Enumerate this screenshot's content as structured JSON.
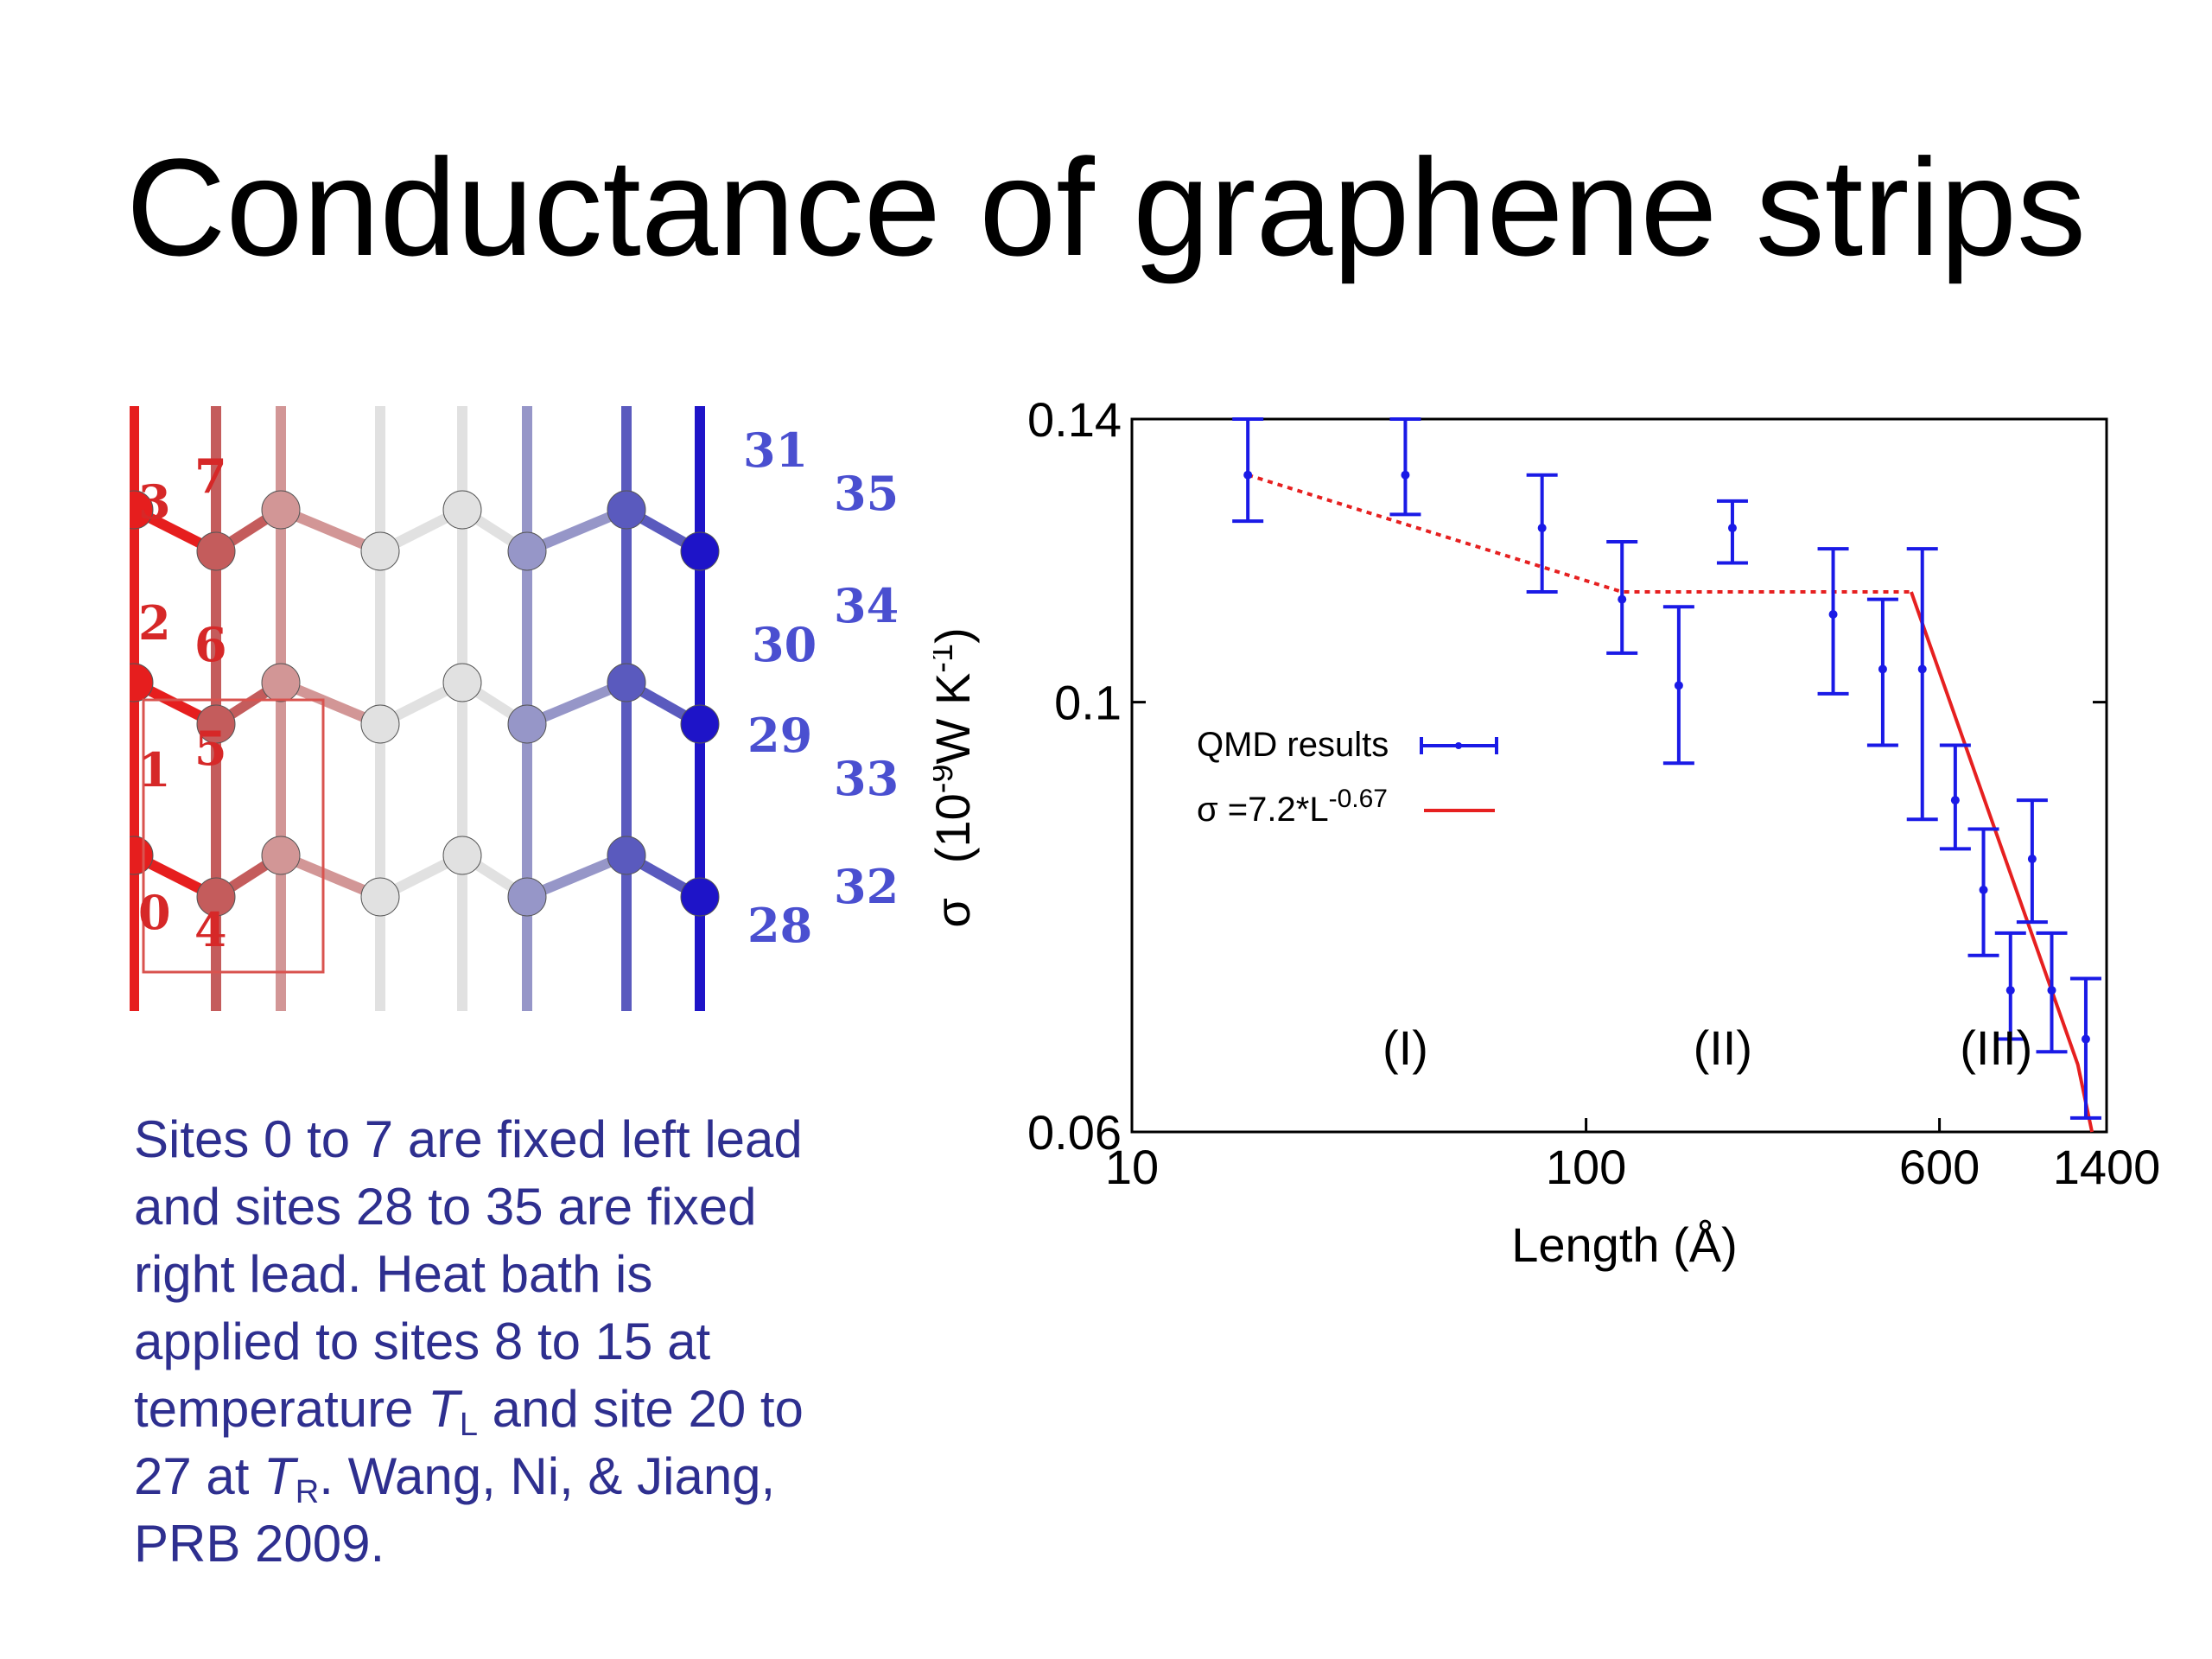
{
  "slide": {
    "title": "Conductance of graphene strips"
  },
  "description": {
    "line1": "Sites 0 to 7 are fixed left lead",
    "line2": "and sites 28 to 35 are fixed",
    "line3": "right lead.  Heat bath is",
    "line4": "applied to sites 8 to 15 at",
    "line5_a": "temperature ",
    "line5_T": "T",
    "line5_sub": "L",
    "line5_b": " and site 20 to",
    "line6_a": "27 at ",
    "line6_T": "T",
    "line6_sub": "R",
    "line6_b": ". Wang, Ni, & Jiang,",
    "line7": "PRB 2009."
  },
  "lattice": {
    "left_labels": [
      "3",
      "7",
      "2",
      "6",
      "1",
      "5",
      "0",
      "4"
    ],
    "right_labels": [
      "31",
      "35",
      "34",
      "30",
      "29",
      "33",
      "32",
      "28"
    ],
    "colors": {
      "left": "#d62828",
      "right": "#4a4fd0",
      "box": "#d9534f"
    }
  },
  "chart_data": {
    "type": "scatter",
    "x_scale": "log",
    "y_scale": "log",
    "xlim": [
      10,
      1400
    ],
    "ylim": [
      0.06,
      0.14
    ],
    "x_ticks": [
      "10",
      "100",
      "600",
      "1400"
    ],
    "y_ticks": [
      "0.06",
      "0.1",
      "0.14"
    ],
    "xlabel": "Length   (Å)",
    "ylabel_sym": "σ",
    "ylabel_units_open": "(10",
    "ylabel_units_exp": "-9",
    "ylabel_units_mid": "W K",
    "ylabel_units_exp2": "-1",
    "ylabel_units_close": ")",
    "grid": false,
    "legend_position": "center-left",
    "series": [
      {
        "name": "QMD results",
        "color": "#1a1ae6",
        "points": [
          {
            "x": 18,
            "y": 0.131,
            "lo": 0.124,
            "hi": 0.14
          },
          {
            "x": 40,
            "y": 0.131,
            "lo": 0.125,
            "hi": 0.14
          },
          {
            "x": 80,
            "y": 0.123,
            "lo": 0.114,
            "hi": 0.131
          },
          {
            "x": 120,
            "y": 0.113,
            "lo": 0.106,
            "hi": 0.121
          },
          {
            "x": 160,
            "y": 0.102,
            "lo": 0.093,
            "hi": 0.112
          },
          {
            "x": 210,
            "y": 0.123,
            "lo": 0.118,
            "hi": 0.127
          },
          {
            "x": 350,
            "y": 0.111,
            "lo": 0.101,
            "hi": 0.12
          },
          {
            "x": 450,
            "y": 0.104,
            "lo": 0.095,
            "hi": 0.113
          },
          {
            "x": 550,
            "y": 0.104,
            "lo": 0.087,
            "hi": 0.12
          },
          {
            "x": 650,
            "y": 0.089,
            "lo": 0.084,
            "hi": 0.095
          },
          {
            "x": 750,
            "y": 0.08,
            "lo": 0.074,
            "hi": 0.086
          },
          {
            "x": 860,
            "y": 0.071,
            "lo": 0.067,
            "hi": 0.076
          },
          {
            "x": 960,
            "y": 0.083,
            "lo": 0.077,
            "hi": 0.089
          },
          {
            "x": 1060,
            "y": 0.071,
            "lo": 0.066,
            "hi": 0.076
          },
          {
            "x": 1260,
            "y": 0.067,
            "lo": 0.061,
            "hi": 0.072
          }
        ]
      },
      {
        "name": "σ =7.2*L-0.67",
        "legend_main": "σ =7.2*L",
        "legend_exp": "-0.67",
        "color": "#e62020",
        "style": "solid",
        "points": [
          {
            "x": 520,
            "y": 0.114
          },
          {
            "x": 1210,
            "y": 0.065
          },
          {
            "x": 1300,
            "y": 0.06
          }
        ]
      }
    ],
    "trend_dotted": {
      "color": "#e62020",
      "points": [
        {
          "x": 18,
          "y": 0.131
        },
        {
          "x": 120,
          "y": 0.114
        },
        {
          "x": 520,
          "y": 0.114
        }
      ]
    },
    "regions": [
      {
        "label": "(I)",
        "x": 40,
        "y": 0.065
      },
      {
        "label": "(II)",
        "x": 200,
        "y": 0.065
      },
      {
        "label": "(III)",
        "x": 800,
        "y": 0.065
      }
    ]
  }
}
